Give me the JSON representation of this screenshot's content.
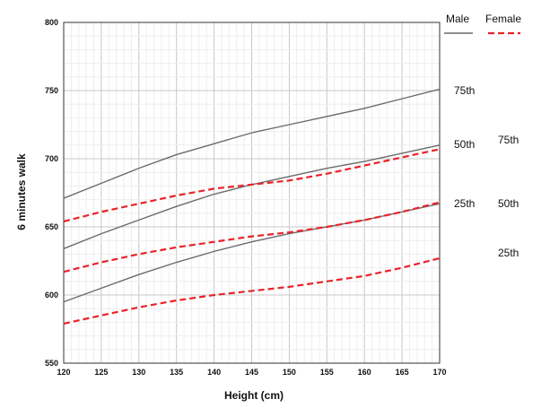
{
  "chart_data": {
    "type": "line",
    "title": "",
    "xlabel": "Height (cm)",
    "ylabel": "6 minutes walk",
    "xlim": [
      120,
      170
    ],
    "ylim": [
      550,
      800
    ],
    "x_ticks": [
      120,
      125,
      130,
      135,
      140,
      145,
      150,
      155,
      160,
      165,
      170
    ],
    "y_ticks": [
      550,
      600,
      650,
      700,
      750,
      800
    ],
    "grid": true,
    "legend": {
      "placement": "top-right",
      "entries": [
        {
          "label": "Male",
          "color": "#6b6b6b",
          "style": "solid"
        },
        {
          "label": "Female",
          "color": "#e8232a",
          "style": "dashed"
        }
      ]
    },
    "x": [
      120,
      125,
      130,
      135,
      140,
      145,
      150,
      155,
      160,
      165,
      170
    ],
    "series": [
      {
        "group": "Male",
        "percentile": "75th",
        "color": "#6b6b6b",
        "style": "solid",
        "values": [
          671,
          682,
          693,
          703,
          711,
          719,
          725,
          731,
          737,
          744,
          751
        ]
      },
      {
        "group": "Male",
        "percentile": "50th",
        "color": "#6b6b6b",
        "style": "solid",
        "values": [
          634,
          645,
          655,
          665,
          674,
          681,
          687,
          693,
          698,
          704,
          710
        ]
      },
      {
        "group": "Male",
        "percentile": "25th",
        "color": "#6b6b6b",
        "style": "solid",
        "values": [
          595,
          605,
          615,
          624,
          632,
          639,
          645,
          650,
          655,
          661,
          667
        ]
      },
      {
        "group": "Female",
        "percentile": "75th",
        "color": "#e8232a",
        "style": "dashed",
        "values": [
          654,
          661,
          667,
          673,
          678,
          681,
          684,
          689,
          695,
          701,
          707
        ]
      },
      {
        "group": "Female",
        "percentile": "50th",
        "color": "#e8232a",
        "style": "dashed",
        "values": [
          617,
          624,
          630,
          635,
          639,
          643,
          646,
          650,
          655,
          661,
          668
        ]
      },
      {
        "group": "Female",
        "percentile": "25th",
        "color": "#e8232a",
        "style": "dashed",
        "values": [
          579,
          585,
          591,
          596,
          600,
          603,
          606,
          610,
          614,
          620,
          627
        ]
      }
    ],
    "percentile_labels": {
      "male": [
        "75th",
        "50th",
        "25th"
      ],
      "female": [
        "75th",
        "50th",
        "25th"
      ]
    }
  }
}
